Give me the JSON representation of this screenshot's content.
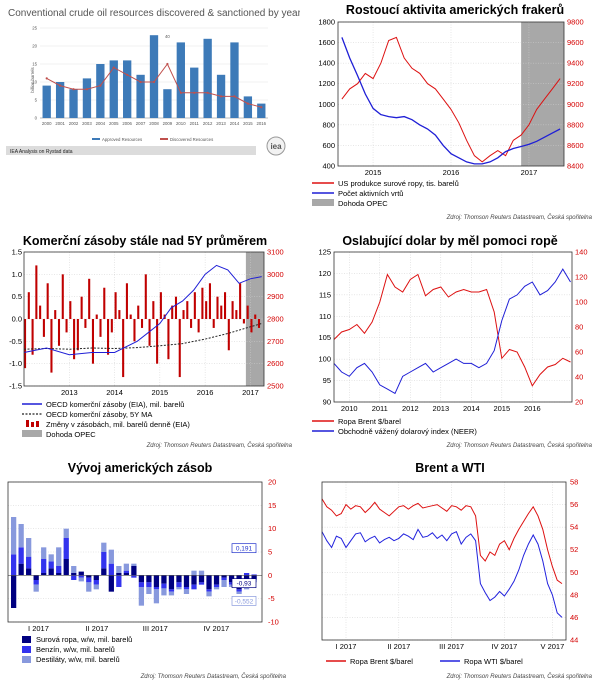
{
  "chart_data": [
    {
      "type": "bar",
      "title": "Conventional crude oil resources discovered & sanctioned by year",
      "ylabel": "billion barrels",
      "categories": [
        "2000",
        "2001",
        "2002",
        "2003",
        "2004",
        "2005",
        "2006",
        "2007",
        "2008",
        "2009",
        "2010",
        "2011",
        "2012",
        "2013",
        "2014",
        "2015",
        "2016"
      ],
      "series": [
        {
          "name": "Approved Resources",
          "kind": "bar",
          "color": "#3d7ab8",
          "values": [
            9,
            10,
            8,
            11,
            15,
            16,
            16,
            12,
            23,
            8,
            21,
            14,
            22,
            12,
            21,
            6,
            4
          ]
        },
        {
          "name": "Discovered Resources",
          "kind": "line",
          "color": "#c0504d",
          "values": [
            11,
            9,
            8,
            8,
            9,
            14,
            12,
            10,
            10,
            15,
            7,
            7,
            7,
            6,
            6,
            4,
            3
          ]
        }
      ],
      "ylim": [
        0,
        25
      ],
      "annotation": "40",
      "footer": "IEA Analysis on Rystad data",
      "logo": "iea"
    },
    {
      "type": "line",
      "title": "Rostoucí aktivita amerických frakerů",
      "x_ticks": [
        "2015",
        "2016",
        "2017"
      ],
      "left_axis": {
        "min": 400,
        "max": 1800,
        "ticks": [
          400,
          600,
          800,
          1000,
          1200,
          1400,
          1600,
          1800
        ]
      },
      "right_axis": {
        "min": 8400,
        "max": 9800,
        "ticks": [
          8400,
          8600,
          8800,
          9000,
          9200,
          9400,
          9600,
          9800
        ]
      },
      "series": [
        {
          "name": "US produkce surové ropy, tis. barelů",
          "axis": "right",
          "color": "#dd1111",
          "x": [
            2014.6,
            2014.7,
            2014.8,
            2014.9,
            2015.0,
            2015.1,
            2015.2,
            2015.3,
            2015.4,
            2015.5,
            2015.6,
            2015.7,
            2015.8,
            2015.9,
            2016.0,
            2016.1,
            2016.2,
            2016.3,
            2016.4,
            2016.5,
            2016.6,
            2016.7,
            2016.8,
            2016.9,
            2017.0,
            2017.1,
            2017.2,
            2017.3,
            2017.4
          ],
          "y": [
            9050,
            9150,
            9200,
            9300,
            9250,
            9400,
            9620,
            9650,
            9450,
            9350,
            9300,
            9200,
            9150,
            9050,
            8950,
            8820,
            8650,
            8500,
            8440,
            8500,
            8550,
            8500,
            8650,
            8700,
            8800,
            8950,
            9050,
            9150,
            9250
          ]
        },
        {
          "name": "Počet aktivních vrtů",
          "axis": "left",
          "color": "#1f1fd6",
          "x": [
            2014.6,
            2014.7,
            2014.8,
            2014.9,
            2015.0,
            2015.1,
            2015.2,
            2015.3,
            2015.4,
            2015.5,
            2015.6,
            2015.7,
            2015.8,
            2015.9,
            2016.0,
            2016.1,
            2016.2,
            2016.3,
            2016.4,
            2016.5,
            2016.6,
            2016.7,
            2016.8,
            2016.9,
            2017.0,
            2017.1,
            2017.2,
            2017.3,
            2017.4
          ],
          "y": [
            1650,
            1450,
            1280,
            1100,
            960,
            900,
            880,
            870,
            880,
            850,
            800,
            760,
            700,
            600,
            520,
            480,
            440,
            420,
            420,
            440,
            480,
            540,
            570,
            590,
            610,
            640,
            680,
            720,
            760
          ]
        }
      ],
      "shaded": {
        "label": "Dohoda OPEC",
        "from": 2016.9,
        "to": 2017.4,
        "color": "#a8a8a8"
      },
      "source": "Zdroj: Thomson Reuters Datastream, Česká spořitelna"
    },
    {
      "type": "line",
      "title": "Komerční zásoby stále nad 5Y průměrem",
      "x_ticks": [
        "2013",
        "2014",
        "2015",
        "2016",
        "2017"
      ],
      "left_axis": {
        "min": -1.5,
        "max": 1.5,
        "ticks": [
          "-1.5",
          "-1.0",
          "-0.5",
          "0.0",
          "0.5",
          "1.0",
          "1.5"
        ]
      },
      "right_axis": {
        "min": 2500,
        "max": 3100,
        "ticks": [
          2500,
          2600,
          2700,
          2800,
          2900,
          3000,
          3100
        ]
      },
      "series": [
        {
          "name": "OECD komerční zásoby (EIA), mil. barelů",
          "axis": "right",
          "color": "#1f1fd6",
          "x": [
            2012.0,
            2012.5,
            2013.0,
            2013.5,
            2014.0,
            2014.5,
            2015.0,
            2015.25,
            2015.5,
            2015.75,
            2016.0,
            2016.25,
            2016.5,
            2016.75,
            2017.0,
            2017.25
          ],
          "y": [
            2650,
            2670,
            2640,
            2650,
            2650,
            2700,
            2780,
            2850,
            2880,
            2930,
            3000,
            3040,
            3020,
            2960,
            2980,
            2990
          ]
        },
        {
          "name": "OECD komerční zásoby, 5Y MA",
          "axis": "right",
          "color": "#222222",
          "dashed": true,
          "x": [
            2012.0,
            2012.5,
            2013.0,
            2013.5,
            2014.0,
            2014.5,
            2015.0,
            2015.5,
            2016.0,
            2016.5,
            2017.0,
            2017.25
          ],
          "y": [
            2665,
            2668,
            2665,
            2670,
            2668,
            2672,
            2680,
            2690,
            2710,
            2735,
            2765,
            2780
          ]
        },
        {
          "name": "Změny v zásobách, mil. barelů denně (EIA)",
          "axis": "left",
          "kind": "bar",
          "color": "#c00000",
          "x_start": 2012.0,
          "x_end": 2017.25,
          "values": [
            -1.1,
            0.6,
            -0.8,
            1.2,
            0.3,
            -0.4,
            0.8,
            -1.2,
            0.2,
            -0.6,
            1.0,
            -0.3,
            0.4,
            -0.9,
            -0.7,
            0.5,
            -0.2,
            0.9,
            -1.0,
            0.1,
            -0.4,
            0.7,
            -0.8,
            -0.3,
            0.6,
            0.2,
            -1.3,
            0.8,
            0.1,
            -0.5,
            0.3,
            -0.2,
            1.0,
            -0.6,
            0.4,
            -1.0,
            0.6,
            0.1,
            -0.9,
            0.3,
            0.5,
            -1.3,
            0.2,
            0.4,
            -0.2,
            0.6,
            -0.3,
            0.7,
            0.4,
            0.8,
            -0.2,
            0.5,
            0.3,
            0.6,
            -0.7,
            0.4,
            0.2,
            0.8,
            -0.1,
            0.3,
            -0.3,
            0.1,
            -0.2
          ]
        }
      ],
      "shaded": {
        "label": "Dohoda OPEC",
        "from": 2016.9,
        "to": 2017.25,
        "color": "#a8a8a8"
      },
      "source": "Zdroj: Thomson Reuters Datastream, Česká spořitelna"
    },
    {
      "type": "line",
      "title": "Oslabující dolar by měl pomoci ropě",
      "x_ticks": [
        "2010",
        "2011",
        "2012",
        "2013",
        "2014",
        "2015",
        "2016"
      ],
      "left_axis": {
        "min": 90,
        "max": 125,
        "ticks": [
          90,
          95,
          100,
          105,
          110,
          115,
          120,
          125
        ]
      },
      "right_axis": {
        "min": 20,
        "max": 140,
        "ticks": [
          20,
          40,
          60,
          80,
          100,
          120,
          140
        ]
      },
      "series": [
        {
          "name": "Ropa Brent $/barel",
          "axis": "right",
          "color": "#dd1111",
          "x": [
            2009.5,
            2009.75,
            2010.0,
            2010.25,
            2010.5,
            2010.75,
            2011.0,
            2011.25,
            2011.5,
            2011.75,
            2012.0,
            2012.25,
            2012.5,
            2012.75,
            2013.0,
            2013.25,
            2013.5,
            2013.75,
            2014.0,
            2014.25,
            2014.5,
            2014.75,
            2015.0,
            2015.25,
            2015.5,
            2015.75,
            2016.0,
            2016.25,
            2016.5,
            2016.75,
            2017.0,
            2017.25
          ],
          "y": [
            70,
            76,
            78,
            82,
            75,
            84,
            100,
            122,
            112,
            108,
            118,
            122,
            105,
            110,
            112,
            104,
            108,
            110,
            108,
            108,
            110,
            92,
            55,
            62,
            60,
            48,
            33,
            42,
            48,
            50,
            55,
            52
          ]
        },
        {
          "name": "Obchodně vážený dolarový index (NEER)",
          "axis": "left",
          "color": "#1f1fd6",
          "x": [
            2009.5,
            2009.75,
            2010.0,
            2010.25,
            2010.5,
            2010.75,
            2011.0,
            2011.25,
            2011.5,
            2011.75,
            2012.0,
            2012.25,
            2012.5,
            2012.75,
            2013.0,
            2013.25,
            2013.5,
            2013.75,
            2014.0,
            2014.25,
            2014.5,
            2014.75,
            2015.0,
            2015.25,
            2015.5,
            2015.75,
            2016.0,
            2016.25,
            2016.5,
            2016.75,
            2017.0,
            2017.25
          ],
          "y": [
            99,
            97,
            96,
            98,
            99,
            97,
            94,
            93,
            92,
            96,
            97,
            98,
            99,
            97,
            98,
            99,
            100,
            99,
            99,
            98,
            99,
            102,
            109,
            114,
            115,
            117,
            118,
            115,
            116,
            118,
            121,
            118
          ]
        }
      ],
      "source": "Zdroj: Thomson Reuters Datastream, Česká spořitelna"
    },
    {
      "type": "bar",
      "title": "Vývoj amerických zásob",
      "x_ticks": [
        "I 2017",
        "II 2017",
        "III 2017",
        "IV 2017"
      ],
      "right_axis": {
        "min": -10,
        "max": 20,
        "ticks": [
          -10,
          -5,
          0,
          5,
          10,
          15,
          20
        ]
      },
      "series": [
        {
          "name": "Surová ropa, w/w, mil. barelů",
          "color": "#000080",
          "values": [
            -7.0,
            2.5,
            1.5,
            -1.0,
            0.5,
            1.5,
            0.5,
            3.5,
            0.5,
            0.8,
            -0.5,
            -1.0,
            1.5,
            -3.5,
            0.5,
            0.5,
            2.0,
            -1.5,
            -1.5,
            -2.5,
            -1.8,
            -3.0,
            -1.5,
            -2.5,
            -2.0,
            -1.5,
            -3.0,
            -2.0,
            -0.5,
            -1.5,
            -3.0,
            -2.5,
            -0.93
          ]
        },
        {
          "name": "Benzín, w/w, mil. barelů",
          "color": "#3333ee",
          "values": [
            4.5,
            3.5,
            2.5,
            -1.0,
            3.0,
            1.5,
            1.5,
            4.5,
            -1.0,
            -0.5,
            -1.0,
            -1.0,
            3.5,
            2.5,
            -2.5,
            0.5,
            -0.5,
            -1.0,
            -1.0,
            -0.5,
            -1.0,
            -0.5,
            -1.0,
            -0.5,
            -1.0,
            -0.5,
            -0.5,
            -0.5,
            -0.5,
            -0.5,
            -0.5,
            0.5,
            0.191
          ]
        },
        {
          "name": "Destiláty, w/w, mil. barelů",
          "color": "#8899dd",
          "values": [
            8.0,
            5.0,
            4.0,
            -1.5,
            2.5,
            1.5,
            4.0,
            2.0,
            1.5,
            -0.8,
            -2.0,
            -1.0,
            2.0,
            3.0,
            1.5,
            1.5,
            0.5,
            -4.0,
            -1.5,
            -3.0,
            -1.5,
            -0.8,
            -0.5,
            -1.0,
            1.0,
            1.0,
            -1.0,
            -0.5,
            -1.5,
            -0.5,
            -0.5,
            -0.5,
            -0.552
          ]
        }
      ],
      "data_labels": [
        "0,191",
        "-0,93",
        "-0,552"
      ],
      "source": "Zdroj: Thomson Reuters Datastream, Česká spořitelna"
    },
    {
      "type": "line",
      "title": "Brent a WTI",
      "x_ticks": [
        "I 2017",
        "II 2017",
        "III 2017",
        "IV 2017",
        "V 2017"
      ],
      "right_axis": {
        "min": 44,
        "max": 58,
        "ticks": [
          44,
          46,
          48,
          50,
          52,
          54,
          56,
          58
        ]
      },
      "series": [
        {
          "name": "Ropa Brent $/barel",
          "color": "#dd1111",
          "x": [
            0,
            2,
            4,
            6,
            8,
            10,
            12,
            14,
            16,
            18,
            20,
            22,
            24,
            26,
            28,
            30,
            32,
            34,
            36,
            38,
            40,
            42,
            44,
            46,
            48,
            50,
            52,
            54,
            56,
            58,
            60,
            62,
            64,
            66,
            68,
            70,
            72,
            74,
            76,
            78,
            80,
            82,
            84,
            86,
            88,
            90,
            92,
            94,
            96,
            98,
            100
          ],
          "y": [
            56.5,
            55.8,
            55.5,
            55.0,
            55.2,
            56.0,
            55.6,
            55.9,
            55.8,
            55.3,
            55.7,
            56.2,
            55.6,
            55.3,
            55.0,
            55.4,
            55.8,
            55.9,
            55.6,
            55.9,
            56.1,
            55.7,
            55.8,
            55.9,
            56.0,
            55.7,
            55.4,
            55.9,
            55.8,
            55.5,
            55.9,
            55.8,
            55.0,
            51.5,
            51.0,
            51.8,
            51.5,
            52.5,
            52.8,
            52.0,
            53.0,
            53.8,
            54.5,
            55.2,
            55.8,
            55.0,
            53.8,
            52.0,
            50.5,
            49.3,
            49.0
          ]
        },
        {
          "name": "Ropa WTI $/barel",
          "color": "#2222dd",
          "x": [
            0,
            2,
            4,
            6,
            8,
            10,
            12,
            14,
            16,
            18,
            20,
            22,
            24,
            26,
            28,
            30,
            32,
            34,
            36,
            38,
            40,
            42,
            44,
            46,
            48,
            50,
            52,
            54,
            56,
            58,
            60,
            62,
            64,
            66,
            68,
            70,
            72,
            74,
            76,
            78,
            80,
            82,
            84,
            86,
            88,
            90,
            92,
            94,
            96,
            98,
            100
          ],
          "y": [
            53.6,
            52.8,
            52.2,
            53.2,
            53.0,
            52.2,
            52.8,
            53.4,
            53.5,
            52.7,
            53.0,
            53.2,
            52.6,
            52.9,
            53.1,
            52.8,
            53.0,
            53.4,
            53.2,
            52.9,
            53.8,
            53.1,
            53.2,
            53.5,
            53.0,
            53.3,
            52.8,
            53.4,
            53.6,
            52.5,
            53.1,
            53.4,
            52.8,
            49.0,
            48.2,
            47.5,
            47.8,
            48.3,
            47.9,
            48.5,
            49.2,
            50.2,
            51.5,
            52.5,
            53.3,
            52.5,
            51.0,
            49.0,
            48.0,
            46.4,
            46.0
          ]
        }
      ],
      "source": "Zdroj: Thomson Reuters Datastream, Česká spořitelna"
    }
  ]
}
